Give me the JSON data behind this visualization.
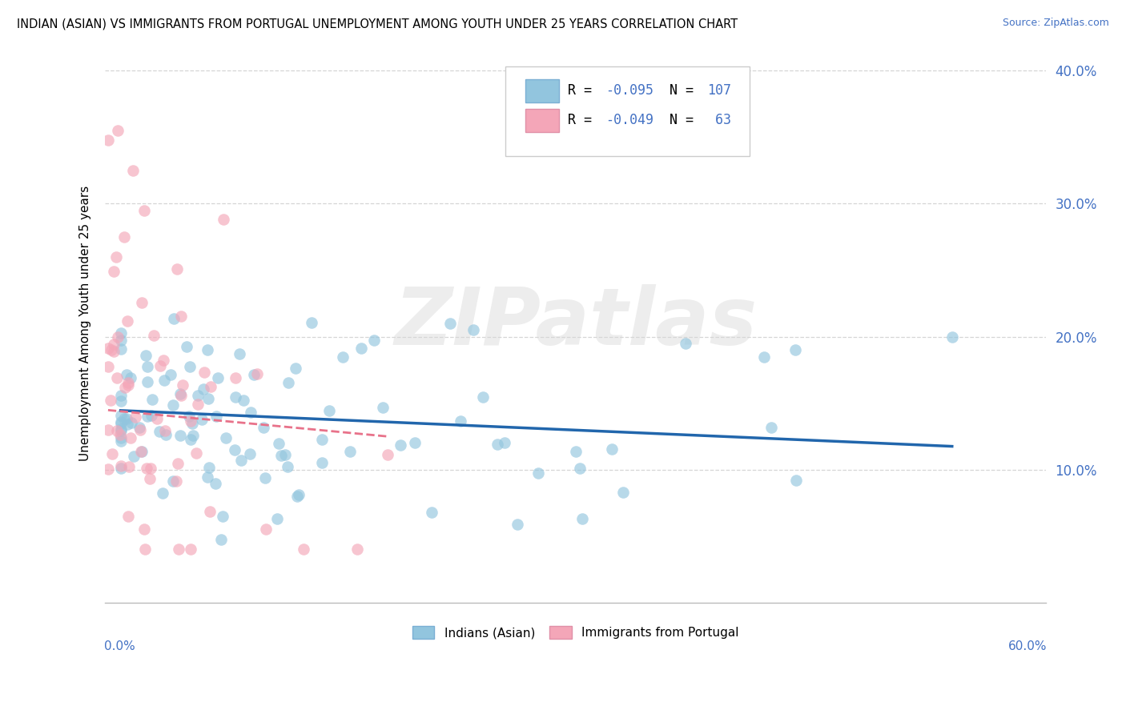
{
  "title": "INDIAN (ASIAN) VS IMMIGRANTS FROM PORTUGAL UNEMPLOYMENT AMONG YOUTH UNDER 25 YEARS CORRELATION CHART",
  "source": "Source: ZipAtlas.com",
  "ylabel": "Unemployment Among Youth under 25 years",
  "xlim": [
    0.0,
    0.6
  ],
  "ylim": [
    0.0,
    0.42
  ],
  "ytick_vals": [
    0.1,
    0.2,
    0.3,
    0.4
  ],
  "ytick_labels": [
    "10.0%",
    "20.0%",
    "30.0%",
    "40.0%"
  ],
  "r_blue": -0.095,
  "n_blue": 107,
  "r_pink": -0.049,
  "n_pink": 63,
  "color_blue": "#92c5de",
  "color_pink": "#f4a6b8",
  "color_blue_line": "#2166ac",
  "color_pink_line": "#e8728a",
  "color_accent": "#4472c4",
  "background_color": "#ffffff",
  "grid_color": "#cccccc",
  "watermark_text": "ZIPatlas",
  "legend_label1": "Indians (Asian)",
  "legend_label2": "Immigrants from Portugal"
}
